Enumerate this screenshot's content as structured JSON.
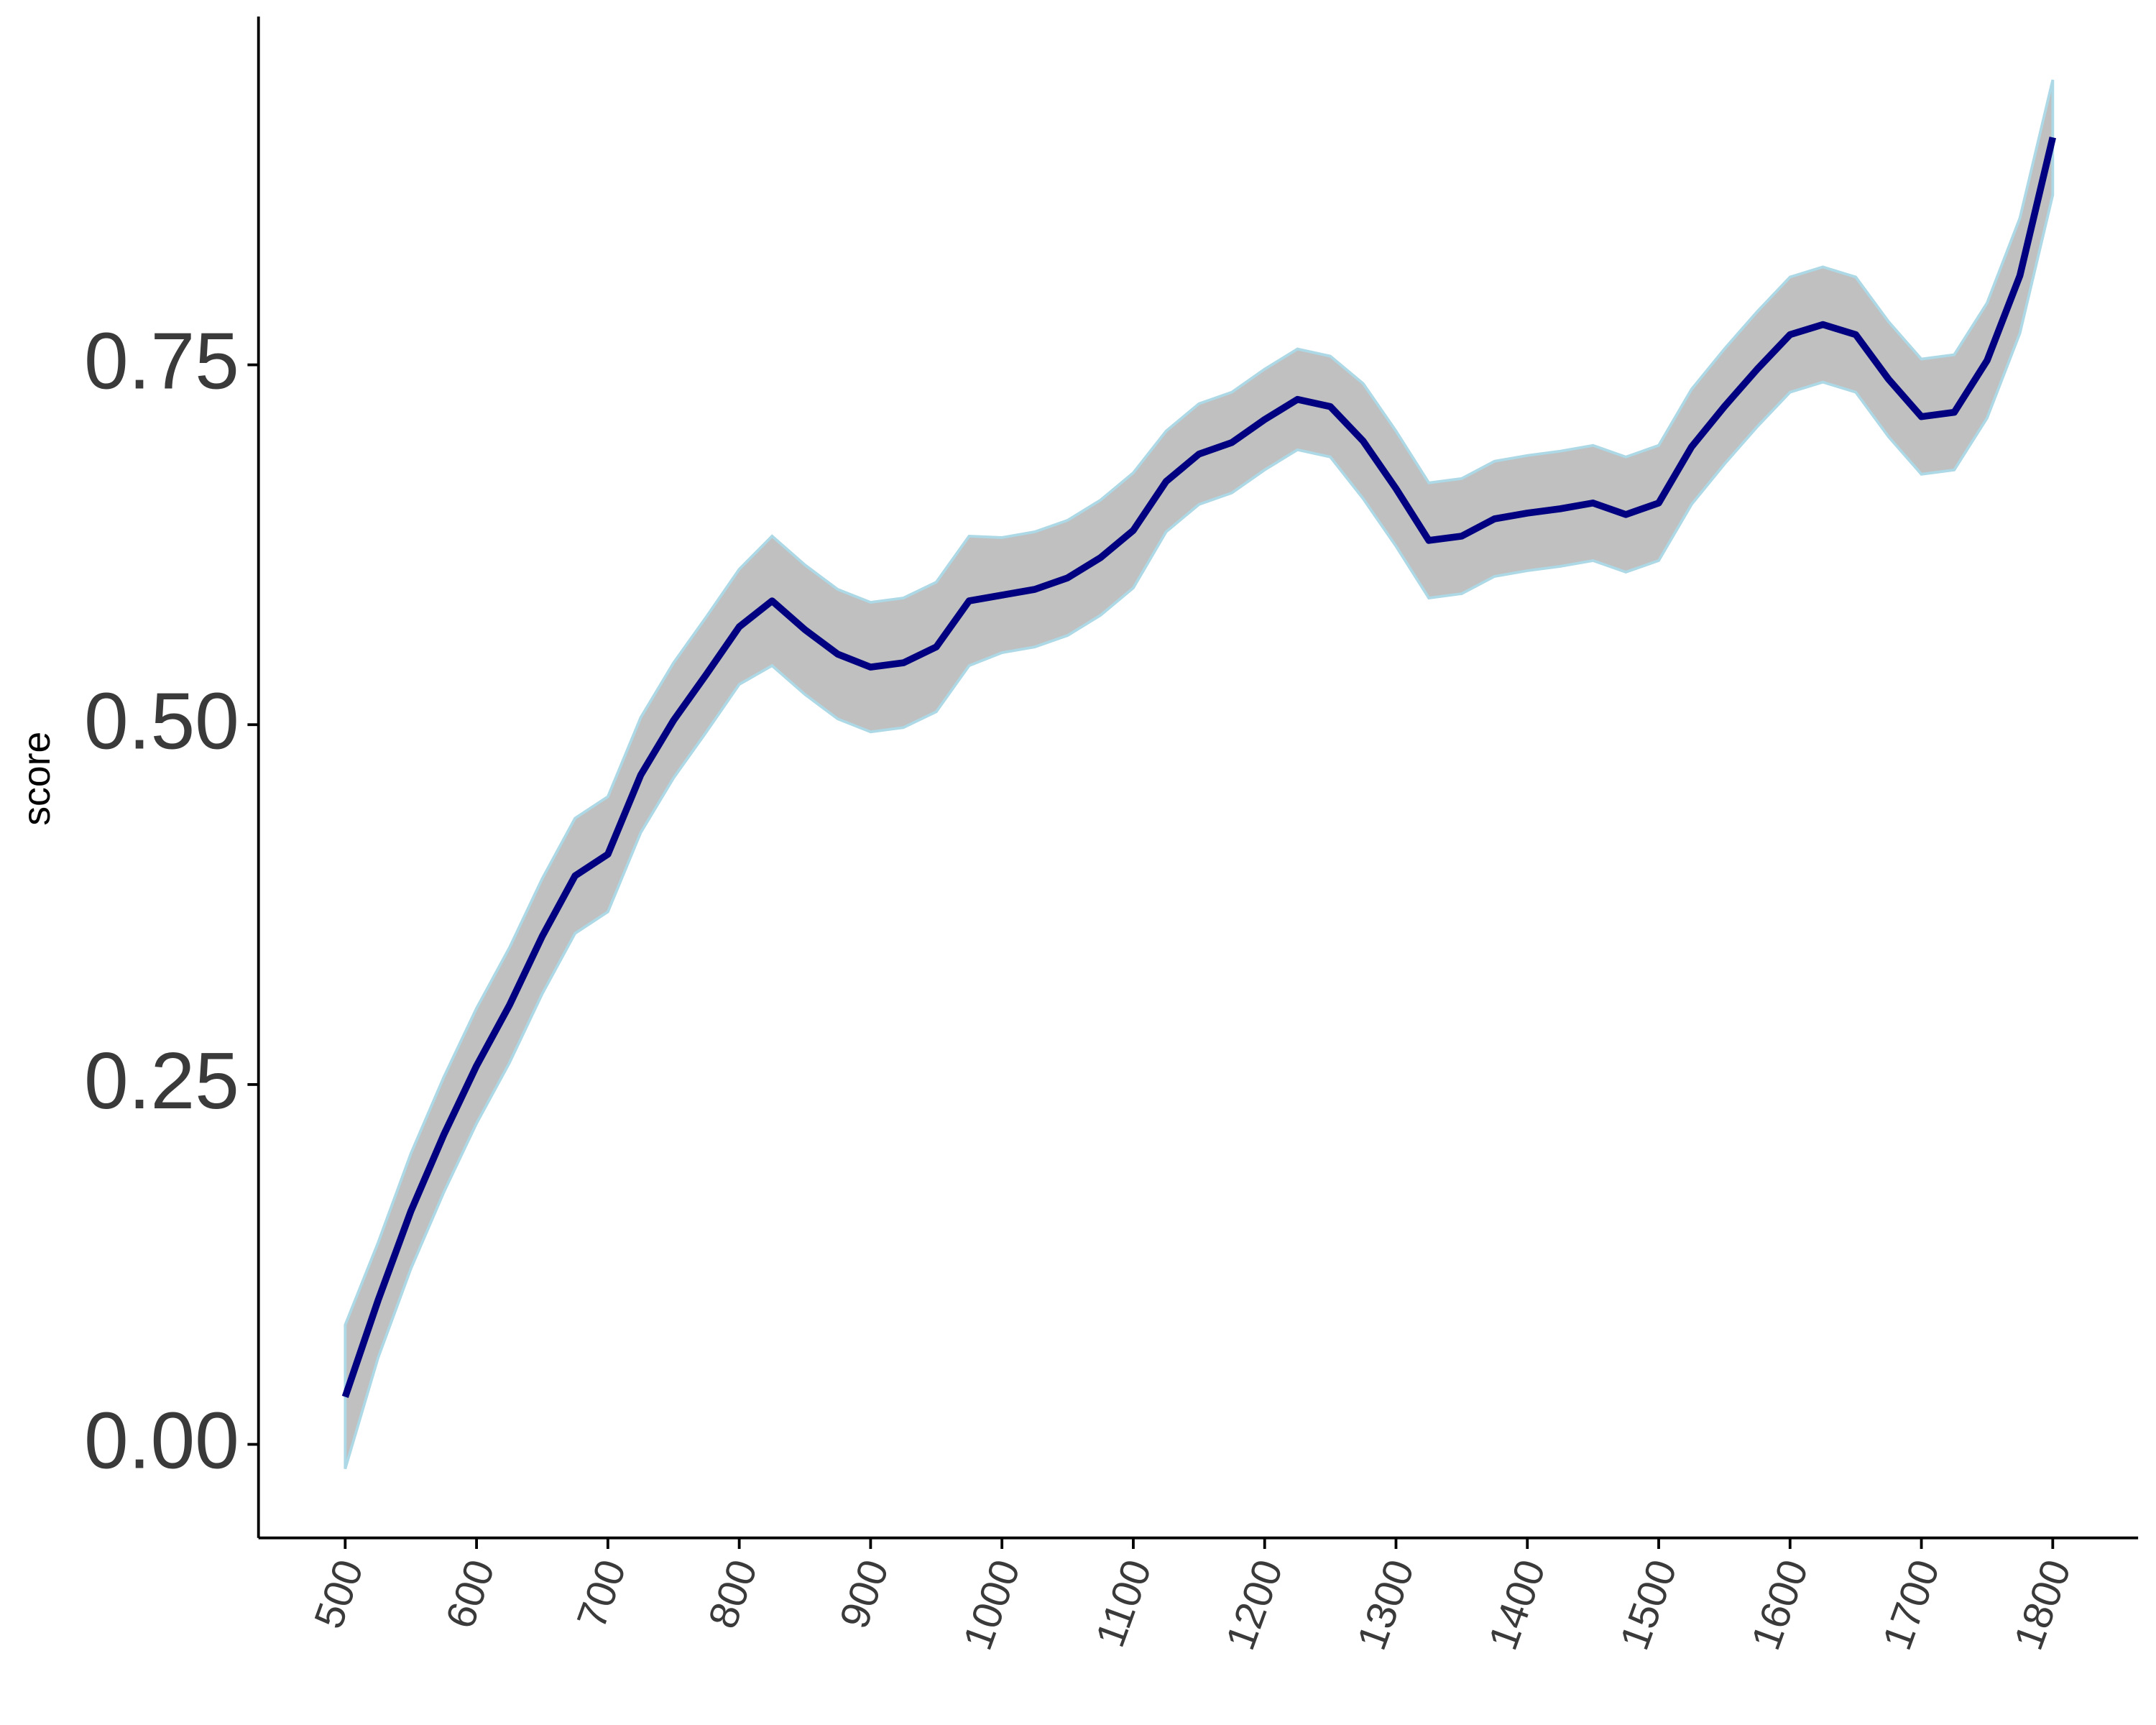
{
  "chart_data": {
    "type": "line",
    "y_label": "score",
    "x": [
      500,
      525,
      550,
      575,
      600,
      625,
      650,
      675,
      700,
      725,
      750,
      775,
      800,
      825,
      850,
      875,
      900,
      925,
      950,
      975,
      1000,
      1025,
      1050,
      1075,
      1100,
      1125,
      1150,
      1175,
      1200,
      1225,
      1250,
      1275,
      1300,
      1325,
      1350,
      1375,
      1400,
      1425,
      1450,
      1475,
      1500,
      1525,
      1550,
      1575,
      1600,
      1625,
      1650,
      1675,
      1700,
      1725,
      1750,
      1775,
      1800
    ],
    "values": [
      0.033,
      0.1,
      0.162,
      0.215,
      0.263,
      0.305,
      0.353,
      0.395,
      0.41,
      0.465,
      0.503,
      0.535,
      0.568,
      0.586,
      0.566,
      0.549,
      0.54,
      0.543,
      0.554,
      0.586,
      0.59,
      0.594,
      0.602,
      0.616,
      0.635,
      0.669,
      0.688,
      0.696,
      0.712,
      0.726,
      0.721,
      0.697,
      0.664,
      0.628,
      0.631,
      0.643,
      0.647,
      0.65,
      0.654,
      0.646,
      0.654,
      0.693,
      0.721,
      0.747,
      0.771,
      0.778,
      0.771,
      0.74,
      0.714,
      0.717,
      0.753,
      0.812,
      0.908
    ],
    "upper": [
      0.083,
      0.14,
      0.202,
      0.255,
      0.303,
      0.345,
      0.393,
      0.435,
      0.45,
      0.505,
      0.543,
      0.575,
      0.608,
      0.631,
      0.611,
      0.594,
      0.585,
      0.588,
      0.599,
      0.631,
      0.63,
      0.634,
      0.642,
      0.656,
      0.675,
      0.704,
      0.723,
      0.731,
      0.747,
      0.761,
      0.756,
      0.737,
      0.704,
      0.668,
      0.671,
      0.683,
      0.687,
      0.69,
      0.694,
      0.686,
      0.694,
      0.733,
      0.761,
      0.787,
      0.811,
      0.818,
      0.811,
      0.78,
      0.754,
      0.757,
      0.793,
      0.852,
      0.948
    ],
    "lower": [
      -0.017,
      0.06,
      0.122,
      0.175,
      0.223,
      0.265,
      0.313,
      0.355,
      0.37,
      0.425,
      0.463,
      0.495,
      0.528,
      0.541,
      0.521,
      0.504,
      0.495,
      0.498,
      0.509,
      0.541,
      0.55,
      0.554,
      0.562,
      0.576,
      0.595,
      0.634,
      0.653,
      0.661,
      0.677,
      0.691,
      0.686,
      0.657,
      0.624,
      0.588,
      0.591,
      0.603,
      0.607,
      0.61,
      0.614,
      0.606,
      0.614,
      0.653,
      0.681,
      0.707,
      0.731,
      0.738,
      0.731,
      0.7,
      0.674,
      0.677,
      0.713,
      0.772,
      0.868
    ],
    "color": "#000080",
    "band_color": "#c0c0c0",
    "band_edge_color": "#add8e6",
    "xlim": [
      434,
      1865
    ],
    "ylim": [
      -0.065,
      0.992
    ],
    "xticks": [
      500,
      600,
      700,
      800,
      900,
      1000,
      1100,
      1200,
      1300,
      1400,
      1500,
      1600,
      1700,
      1800
    ],
    "yticks": [
      {
        "value": 0,
        "label": "0.00"
      },
      {
        "value": 0.25,
        "label": "0.25"
      },
      {
        "value": 0.5,
        "label": "0.50"
      },
      {
        "value": 0.75,
        "label": "0.75"
      }
    ]
  }
}
